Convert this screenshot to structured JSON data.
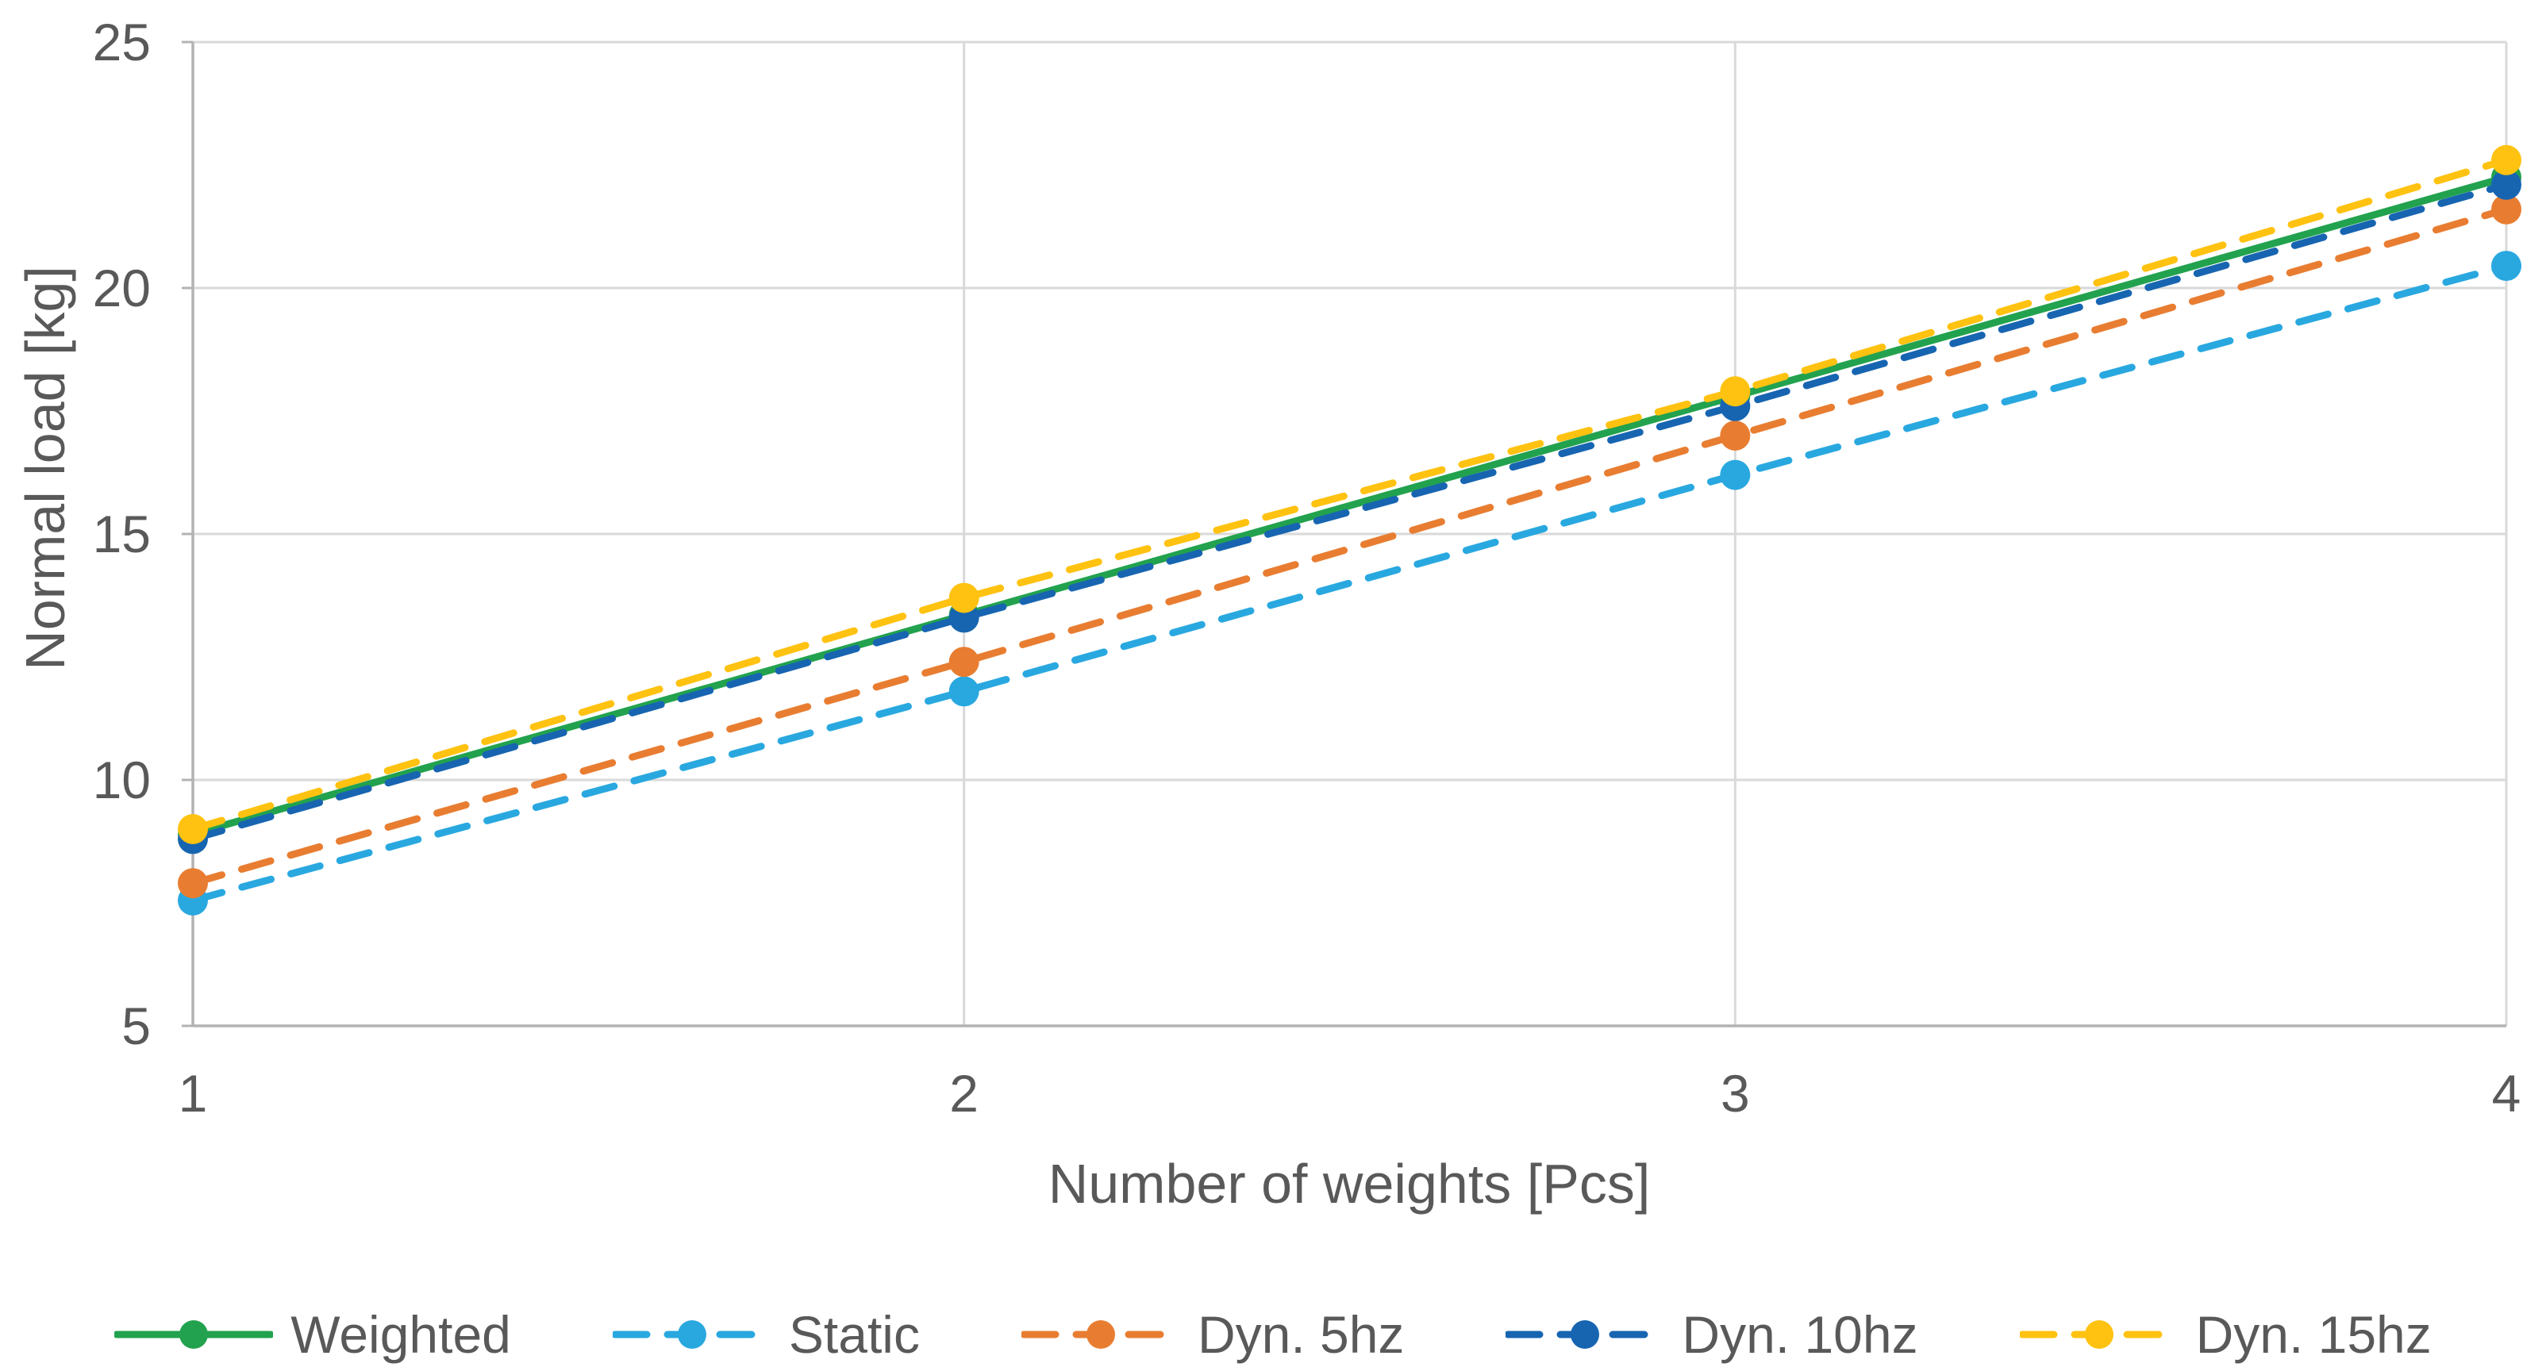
{
  "figure": {
    "background": "#FFFFFF",
    "text_color": "#595959",
    "gridline_color": "#D9D9D9",
    "axis_color": "#B3B3B3"
  },
  "chart_data": {
    "type": "line",
    "title": "",
    "xlabel": "Number of weights [Pcs]",
    "ylabel": "Normal load [kg]",
    "xlim": [
      1,
      4
    ],
    "ylim": [
      5,
      25
    ],
    "xticks": [
      "1",
      "2",
      "3",
      "4"
    ],
    "yticks": [
      "5",
      "10",
      "15",
      "20",
      "25"
    ],
    "grid": true,
    "legend_position": "bottom",
    "x": [
      1,
      2,
      3,
      4
    ],
    "series": [
      {
        "name": "Weighted",
        "color": "#22A24E",
        "style": "solid",
        "marker": "circle",
        "values": [
          8.9,
          13.35,
          17.8,
          22.25
        ]
      },
      {
        "name": "Static",
        "color": "#29A8E0",
        "style": "dashed",
        "marker": "circle",
        "values": [
          7.55,
          11.8,
          16.2,
          20.45
        ]
      },
      {
        "name": "Dyn. 5hz",
        "color": "#E87D31",
        "style": "dashed",
        "marker": "circle",
        "values": [
          7.9,
          12.4,
          17.0,
          21.6
        ]
      },
      {
        "name": "Dyn. 10hz",
        "color": "#1765B1",
        "style": "dashed",
        "marker": "circle",
        "values": [
          8.8,
          13.3,
          17.6,
          22.1
        ]
      },
      {
        "name": "Dyn. 15hz",
        "color": "#FFC210",
        "style": "dashed",
        "marker": "circle",
        "values": [
          9.0,
          13.7,
          17.9,
          22.6
        ]
      }
    ]
  }
}
